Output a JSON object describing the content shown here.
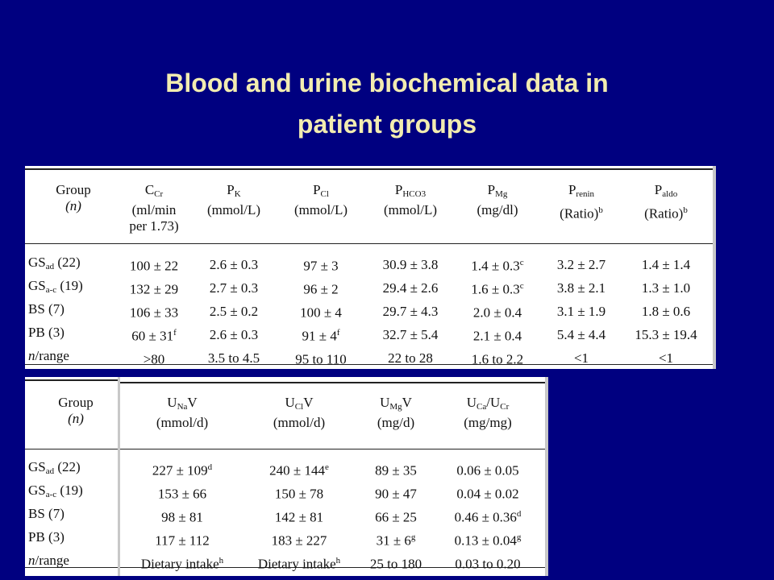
{
  "title": {
    "line1": "Blood and urine biochemical data in",
    "line2": "patient groups"
  },
  "table1": {
    "headers": [
      {
        "main": "Group",
        "sub": "",
        "line2": "(n)",
        "line3": ""
      },
      {
        "main": "C",
        "sub": "Cr",
        "line2": "(ml/min",
        "line3": "per 1.73)"
      },
      {
        "main": "P",
        "sub": "K",
        "line2": "(mmol/L)",
        "line3": ""
      },
      {
        "main": "P",
        "sub": "Cl",
        "line2": "(mmol/L)",
        "line3": ""
      },
      {
        "main": "P",
        "sub": "HCO3",
        "line2": "(mmol/L)",
        "line3": ""
      },
      {
        "main": "P",
        "sub": "Mg",
        "line2": "(mg/dl)",
        "line3": ""
      },
      {
        "main": "P",
        "sub": "renin",
        "line2": "(Ratio)",
        "line3": "",
        "sup": "b"
      },
      {
        "main": "P",
        "sub": "aldo",
        "line2": "(Ratio)",
        "line3": "",
        "sup": "b"
      }
    ],
    "rows": [
      {
        "group": "GS",
        "group_sub": "ad",
        "group_rest": " (22)",
        "ccr": "100 ± 22",
        "ccr_sup": "",
        "pk": "2.6 ± 0.3",
        "pcl": "97 ± 3",
        "pcl_sup": "",
        "phco3": "30.9 ± 3.8",
        "pmg": "1.4 ± 0.3",
        "pmg_sup": "c",
        "prenin": "3.2 ± 2.7",
        "paldo": "1.4 ± 1.4"
      },
      {
        "group": "GS",
        "group_sub": "a-c",
        "group_rest": " (19)",
        "ccr": "132 ± 29",
        "ccr_sup": "",
        "pk": "2.7 ± 0.3",
        "pcl": "96 ± 2",
        "pcl_sup": "",
        "phco3": "29.4 ± 2.6",
        "pmg": "1.6 ± 0.3",
        "pmg_sup": "c",
        "prenin": "3.8 ± 2.1",
        "paldo": "1.3 ± 1.0"
      },
      {
        "group": "BS (7)",
        "group_sub": "",
        "group_rest": "",
        "ccr": "106 ± 33",
        "ccr_sup": "",
        "pk": "2.5 ± 0.2",
        "pcl": "100 ± 4",
        "pcl_sup": "",
        "phco3": "29.7 ± 4.3",
        "pmg": "2.0 ± 0.4",
        "pmg_sup": "",
        "prenin": "3.1 ± 1.9",
        "paldo": "1.8 ± 0.6"
      },
      {
        "group": "PB (3)",
        "group_sub": "",
        "group_rest": "",
        "ccr": "60 ± 31",
        "ccr_sup": "f",
        "pk": "2.6 ± 0.3",
        "pcl": "91 ± 4",
        "pcl_sup": "f",
        "phco3": "32.7 ± 5.4",
        "pmg": "2.1 ± 0.4",
        "pmg_sup": "",
        "prenin": "5.4 ± 4.4",
        "paldo": "15.3 ± 19.4"
      },
      {
        "group": "n/range",
        "group_sub": "",
        "group_rest": "",
        "ccr": ">80",
        "ccr_sup": "",
        "pk": "3.5 to 4.5",
        "pcl": "95 to 110",
        "pcl_sup": "",
        "phco3": "22 to 28",
        "pmg": "1.6 to 2.2",
        "pmg_sup": "",
        "prenin": "<1",
        "paldo": "<1"
      }
    ]
  },
  "table2": {
    "headers": [
      {
        "main": "Group",
        "sub": "",
        "main2": "",
        "sub2": "",
        "line2": "(n)"
      },
      {
        "main": "U",
        "sub": "Na",
        "main2": "V",
        "sub2": "",
        "line2": "(mmol/d)"
      },
      {
        "main": "U",
        "sub": "Cl",
        "main2": "V",
        "sub2": "",
        "line2": "(mmol/d)"
      },
      {
        "main": "U",
        "sub": "Mg",
        "main2": "V",
        "sub2": "",
        "line2": "(mg/d)"
      },
      {
        "main": "U",
        "sub": "Ca",
        "main2": "/U",
        "sub2": "Cr",
        "line2": "(mg/mg)"
      }
    ],
    "rows": [
      {
        "group": "GS",
        "group_sub": "ad",
        "group_rest": " (22)",
        "una": "227 ± 109",
        "una_sup": "d",
        "ucl": "240 ± 144",
        "ucl_sup": "e",
        "umg": "89 ± 35",
        "umg_sup": "",
        "uca": "0.06 ± 0.05",
        "uca_sup": ""
      },
      {
        "group": "GS",
        "group_sub": "a-c",
        "group_rest": " (19)",
        "una": "153 ± 66",
        "una_sup": "",
        "ucl": "150 ± 78",
        "ucl_sup": "",
        "umg": "90 ± 47",
        "umg_sup": "",
        "uca": "0.04 ± 0.02",
        "uca_sup": ""
      },
      {
        "group": "BS (7)",
        "group_sub": "",
        "group_rest": "",
        "una": "98 ± 81",
        "una_sup": "",
        "ucl": "142 ± 81",
        "ucl_sup": "",
        "umg": "66 ± 25",
        "umg_sup": "",
        "uca": "0.46 ± 0.36",
        "uca_sup": "d"
      },
      {
        "group": "PB (3)",
        "group_sub": "",
        "group_rest": "",
        "una": "117 ± 112",
        "una_sup": "",
        "ucl": "183 ± 227",
        "ucl_sup": "",
        "umg": "31 ± 6",
        "umg_sup": "g",
        "uca": "0.13 ± 0.04",
        "uca_sup": "g"
      },
      {
        "group": "n/range",
        "group_sub": "",
        "group_rest": "",
        "una": "Dietary intake",
        "una_sup": "h",
        "ucl": "Dietary intake",
        "ucl_sup": "h",
        "umg": "25 to 180",
        "umg_sup": "",
        "uca": "0.03 to 0.20",
        "uca_sup": ""
      }
    ]
  }
}
